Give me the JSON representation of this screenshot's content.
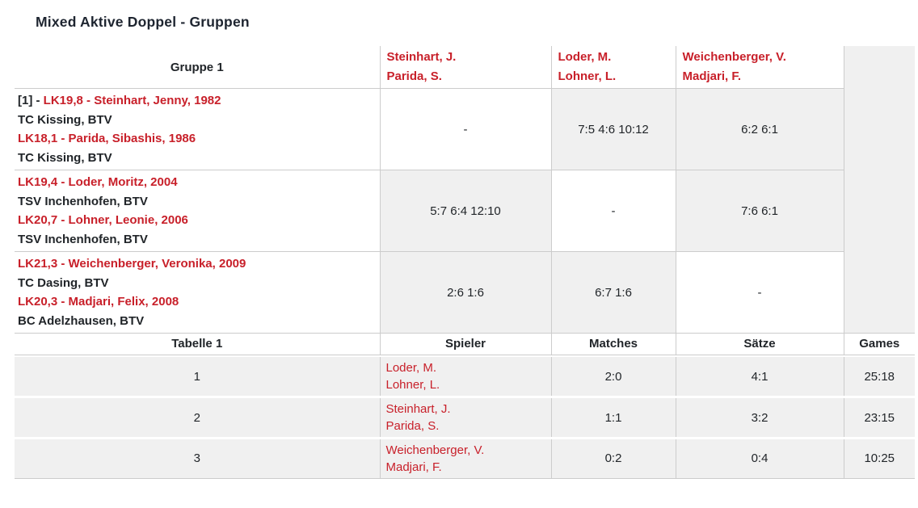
{
  "title": "Mixed Aktive Doppel - Gruppen",
  "colors": {
    "accent_red": "#c8202a",
    "cell_gray": "#f0f0f0",
    "border_gray": "#cccccc",
    "title_dark": "#1e2530"
  },
  "group_table": {
    "corner_label": "Gruppe 1",
    "column_teams": [
      {
        "line1": "Steinhart, J.",
        "line2": "Parida, S."
      },
      {
        "line1": "Loder, M.",
        "line2": "Lohner, L."
      },
      {
        "line1": "Weichenberger, V.",
        "line2": "Madjari, F."
      }
    ],
    "rows": [
      {
        "seed_prefix": "[1] - ",
        "player1": "LK19,8 - Steinhart, Jenny, 1982",
        "club1": "TC Kissing, BTV",
        "player2": "LK18,1 - Parida, Sibashis, 1986",
        "club2": "TC Kissing, BTV",
        "results": [
          "-",
          "7:5 4:6 10:12",
          "6:2 6:1"
        ]
      },
      {
        "seed_prefix": "",
        "player1": "LK19,4 - Loder, Moritz, 2004",
        "club1": "TSV Inchenhofen, BTV",
        "player2": "LK20,7 - Lohner, Leonie, 2006",
        "club2": "TSV Inchenhofen, BTV",
        "results": [
          "5:7 6:4 12:10",
          "-",
          "7:6 6:1"
        ]
      },
      {
        "seed_prefix": "",
        "player1": "LK21,3 - Weichenberger, Veronika, 2009",
        "club1": "TC Dasing, BTV",
        "player2": "LK20,3 - Madjari, Felix, 2008",
        "club2": "BC Adelzhausen, BTV",
        "results": [
          "2:6 1:6",
          "6:7 1:6",
          "-"
        ]
      }
    ]
  },
  "standings_table": {
    "headers": {
      "table_label": "Tabelle 1",
      "players": "Spieler",
      "matches": "Matches",
      "sets": "Sätze",
      "games": "Games"
    },
    "rows": [
      {
        "rank": "1",
        "player1": "Loder, M.",
        "player2": "Lohner, L.",
        "matches": "2:0",
        "saetze": "4:1",
        "games": "25:18"
      },
      {
        "rank": "2",
        "player1": "Steinhart, J.",
        "player2": "Parida, S.",
        "matches": "1:1",
        "saetze": "3:2",
        "games": "23:15"
      },
      {
        "rank": "3",
        "player1": "Weichenberger, V.",
        "player2": "Madjari, F.",
        "matches": "0:2",
        "saetze": "0:4",
        "games": "10:25"
      }
    ]
  }
}
